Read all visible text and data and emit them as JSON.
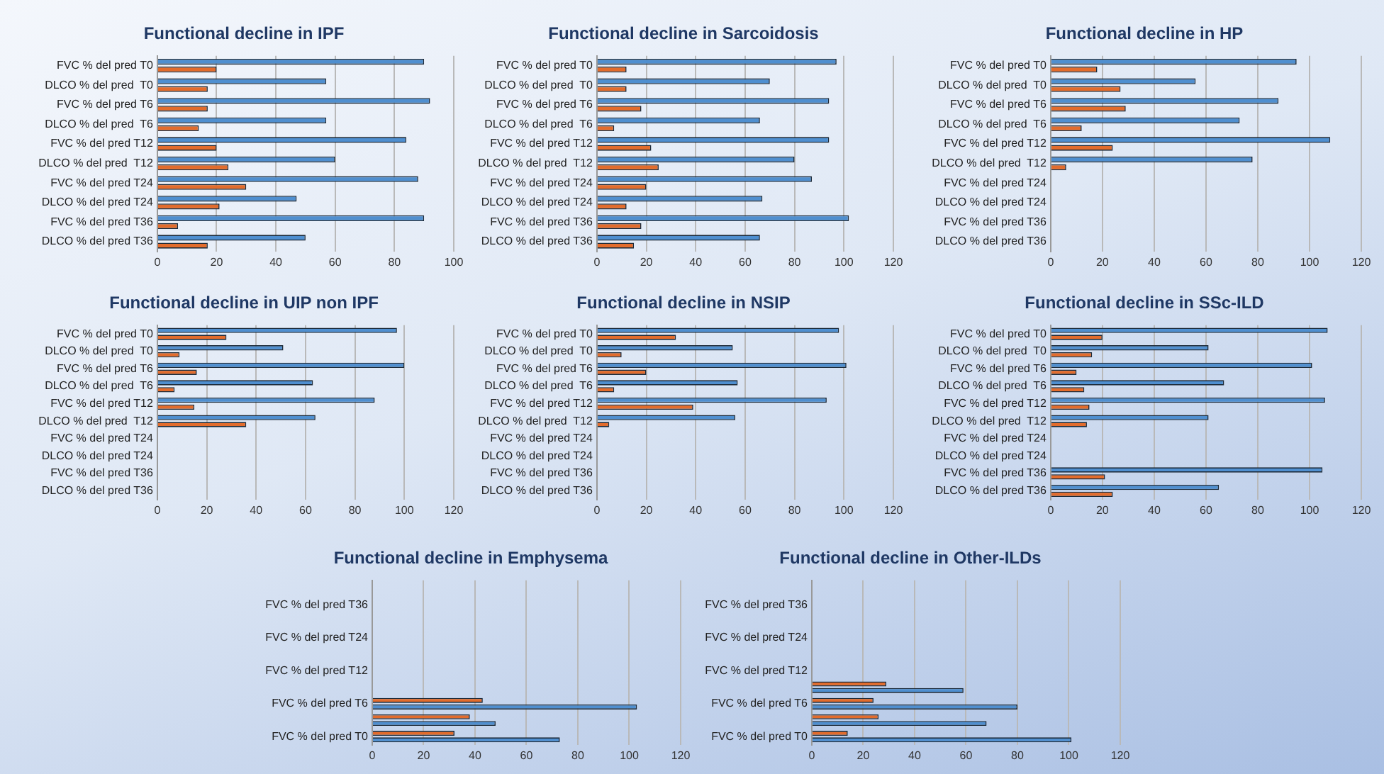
{
  "chart_data": [
    {
      "type": "bar",
      "orientation": "horizontal",
      "title": "Functional decline in IPF",
      "categories": [
        "FVC % del pred T0",
        "DLCO % del pred  T0",
        "FVC % del pred T6",
        "DLCO % del pred  T6",
        "FVC % del pred T12",
        "DLCO % del pred  T12",
        "FVC % del pred T24",
        "DLCO % del pred T24",
        "FVC % del pred T36",
        "DLCO % del pred T36"
      ],
      "series": [
        {
          "color": "#4f8fd0",
          "values": [
            90,
            57,
            92,
            57,
            84,
            60,
            88,
            47,
            90,
            50
          ]
        },
        {
          "color": "#e36c2c",
          "values": [
            20,
            17,
            17,
            14,
            20,
            24,
            30,
            21,
            7,
            17
          ]
        }
      ],
      "xlim": [
        0,
        100
      ],
      "xticks": [
        0,
        20,
        40,
        60,
        80,
        100
      ],
      "grid": "x"
    },
    {
      "type": "bar",
      "orientation": "horizontal",
      "title": "Functional decline in Sarcoidosis",
      "categories": [
        "FVC % del pred T0",
        "DLCO % del pred  T0",
        "FVC % del pred T6",
        "DLCO % del pred  T6",
        "FVC % del pred T12",
        "DLCO % del pred  T12",
        "FVC % del pred T24",
        "DLCO % del pred T24",
        "FVC % del pred T36",
        "DLCO % del pred T36"
      ],
      "series": [
        {
          "color": "#4f8fd0",
          "values": [
            97,
            70,
            94,
            66,
            94,
            80,
            87,
            67,
            102,
            66
          ]
        },
        {
          "color": "#e36c2c",
          "values": [
            12,
            12,
            18,
            7,
            22,
            25,
            20,
            12,
            18,
            15
          ]
        }
      ],
      "xlim": [
        0,
        120
      ],
      "xticks": [
        0,
        20,
        40,
        60,
        80,
        100,
        120
      ],
      "grid": "x"
    },
    {
      "type": "bar",
      "orientation": "horizontal",
      "title": "Functional decline in HP",
      "categories": [
        "FVC % del pred T0",
        "DLCO % del pred  T0",
        "FVC % del pred T6",
        "DLCO % del pred  T6",
        "FVC % del pred T12",
        "DLCO % del pred  T12",
        "FVC % del pred T24",
        "DLCO % del pred T24",
        "FVC % del pred T36",
        "DLCO % del pred T36"
      ],
      "series": [
        {
          "color": "#4f8fd0",
          "values": [
            95,
            56,
            88,
            73,
            108,
            78,
            null,
            null,
            null,
            null
          ]
        },
        {
          "color": "#e36c2c",
          "values": [
            18,
            27,
            29,
            12,
            24,
            6,
            null,
            null,
            null,
            null
          ]
        }
      ],
      "xlim": [
        0,
        120
      ],
      "xticks": [
        0,
        20,
        40,
        60,
        80,
        100,
        120
      ],
      "grid": "x"
    },
    {
      "type": "bar",
      "orientation": "horizontal",
      "title": "Functional decline in UIP non IPF",
      "categories": [
        "FVC % del pred T0",
        "DLCO % del pred  T0",
        "FVC % del pred T6",
        "DLCO % del pred  T6",
        "FVC % del pred T12",
        "DLCO % del pred  T12",
        "FVC % del pred T24",
        "DLCO % del pred T24",
        "FVC % del pred T36",
        "DLCO % del pred T36"
      ],
      "series": [
        {
          "color": "#4f8fd0",
          "values": [
            97,
            51,
            100,
            63,
            88,
            64,
            null,
            null,
            null,
            null
          ]
        },
        {
          "color": "#e36c2c",
          "values": [
            28,
            9,
            16,
            7,
            15,
            36,
            null,
            null,
            null,
            null
          ]
        }
      ],
      "xlim": [
        0,
        120
      ],
      "xticks": [
        0,
        20,
        40,
        60,
        80,
        100,
        120
      ],
      "grid": "x"
    },
    {
      "type": "bar",
      "orientation": "horizontal",
      "title": "Functional decline in NSIP",
      "categories": [
        "FVC % del pred T0",
        "DLCO % del pred  T0",
        "FVC % del pred T6",
        "DLCO % del pred  T6",
        "FVC % del pred T12",
        "DLCO % del pred  T12",
        "FVC % del pred T24",
        "DLCO % del pred T24",
        "FVC % del pred T36",
        "DLCO % del pred T36"
      ],
      "series": [
        {
          "color": "#4f8fd0",
          "values": [
            98,
            55,
            101,
            57,
            93,
            56,
            null,
            null,
            null,
            null
          ]
        },
        {
          "color": "#e36c2c",
          "values": [
            32,
            10,
            20,
            7,
            39,
            5,
            null,
            null,
            null,
            null
          ]
        }
      ],
      "xlim": [
        0,
        120
      ],
      "xticks": [
        0,
        20,
        40,
        60,
        80,
        100,
        120
      ],
      "grid": "x"
    },
    {
      "type": "bar",
      "orientation": "horizontal",
      "title": "Functional decline in SSc-ILD",
      "categories": [
        "FVC % del pred T0",
        "DLCO % del pred  T0",
        "FVC % del pred T6",
        "DLCO % del pred  T6",
        "FVC % del pred T12",
        "DLCO % del pred  T12",
        "FVC % del pred T24",
        "DLCO % del pred T24",
        "FVC % del pred T36",
        "DLCO % del pred T36"
      ],
      "series": [
        {
          "color": "#4f8fd0",
          "values": [
            107,
            61,
            101,
            67,
            106,
            61,
            null,
            null,
            105,
            65
          ]
        },
        {
          "color": "#e36c2c",
          "values": [
            20,
            16,
            10,
            13,
            15,
            14,
            null,
            null,
            21,
            24
          ]
        }
      ],
      "xlim": [
        0,
        120
      ],
      "xticks": [
        0,
        20,
        40,
        60,
        80,
        100,
        120
      ],
      "grid": "x"
    },
    {
      "type": "bar",
      "orientation": "horizontal",
      "title": "Functional decline in Emphysema",
      "categories": [
        null,
        "FVC % del pred T36",
        null,
        "FVC % del pred T24",
        null,
        "FVC % del pred T12",
        null,
        "FVC % del pred T6",
        null,
        "FVC % del pred T0"
      ],
      "series": [
        {
          "color": "#e36c2c",
          "values": [
            null,
            null,
            null,
            null,
            null,
            null,
            null,
            43,
            38,
            32
          ]
        },
        {
          "color": "#4f8fd0",
          "values": [
            null,
            null,
            null,
            null,
            null,
            null,
            null,
            103,
            48,
            73
          ]
        }
      ],
      "xlim": [
        0,
        120
      ],
      "xticks": [
        0,
        20,
        40,
        60,
        80,
        100,
        120
      ],
      "grid": "x"
    },
    {
      "type": "bar",
      "orientation": "horizontal",
      "title": "Functional decline in Other-ILDs",
      "categories": [
        null,
        "FVC % del pred T36",
        null,
        "FVC % del pred T24",
        null,
        "FVC % del pred T12",
        null,
        "FVC % del pred T6",
        null,
        "FVC % del pred T0"
      ],
      "series": [
        {
          "color": "#e36c2c",
          "values": [
            null,
            null,
            null,
            null,
            null,
            null,
            29,
            24,
            26,
            14
          ]
        },
        {
          "color": "#4f8fd0",
          "values": [
            null,
            null,
            null,
            null,
            null,
            null,
            59,
            80,
            68,
            101
          ]
        }
      ],
      "xlim": [
        0,
        120
      ],
      "xticks": [
        0,
        20,
        40,
        60,
        80,
        100,
        120
      ],
      "grid": "x"
    }
  ]
}
